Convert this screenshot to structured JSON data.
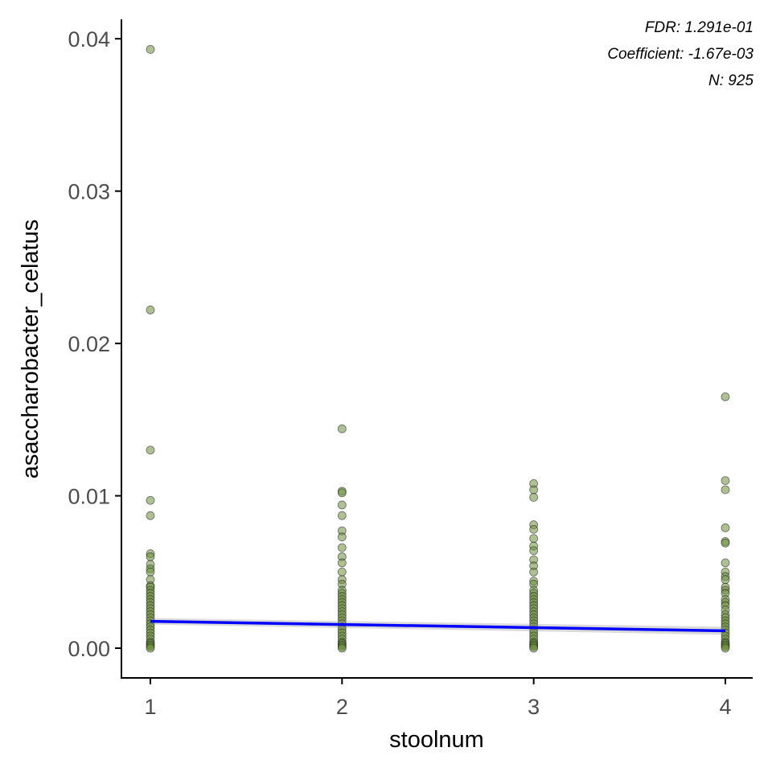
{
  "chart_data": {
    "type": "scatter",
    "xlabel": "stoolnum",
    "ylabel": "asaccharobacter_celatus",
    "x_ticks": [
      1,
      2,
      3,
      4
    ],
    "y_ticks": [
      0.0,
      0.01,
      0.02,
      0.03,
      0.04
    ],
    "y_tick_labels": [
      "0.00",
      "0.01",
      "0.02",
      "0.03",
      "0.04"
    ],
    "x_tick_labels": [
      "1",
      "2",
      "3",
      "4"
    ],
    "xlim": [
      0.85,
      4.15
    ],
    "ylim": [
      -0.002,
      0.041
    ],
    "grid": false,
    "annotations": [
      "FDR: 1.291e-01",
      "Coefficient: -1.67e-03",
      "N: 925"
    ],
    "point_color": "#6b8e3a",
    "fit_color": "#0000ff",
    "fit_line": {
      "x": [
        1,
        4
      ],
      "y": [
        0.00176,
        0.00114
      ]
    },
    "points": [
      {
        "x": 1,
        "y": [
          0.0393,
          0.0222,
          0.013,
          0.0097,
          0.0087,
          0.0062,
          0.006,
          0.0055,
          0.0052,
          0.005,
          0.0045,
          0.0041,
          0.004,
          0.0038,
          0.0036,
          0.0034,
          0.0032,
          0.003,
          0.0028,
          0.0026,
          0.0024,
          0.0022,
          0.002,
          0.0018,
          0.0016,
          0.0014,
          0.0012,
          0.001,
          0.0008,
          0.0006,
          0.0004,
          0.0003,
          0.0002,
          0.0001,
          0.0
        ]
      },
      {
        "x": 2,
        "y": [
          0.0144,
          0.0103,
          0.0102,
          0.0094,
          0.0087,
          0.0077,
          0.0073,
          0.0066,
          0.006,
          0.0056,
          0.005,
          0.0045,
          0.0042,
          0.0038,
          0.0036,
          0.0034,
          0.0032,
          0.003,
          0.0028,
          0.0026,
          0.0024,
          0.0022,
          0.002,
          0.0018,
          0.0016,
          0.0014,
          0.0012,
          0.001,
          0.0008,
          0.0006,
          0.0004,
          0.0003,
          0.0002,
          0.0001,
          0.0
        ]
      },
      {
        "x": 3,
        "y": [
          0.0108,
          0.0104,
          0.0099,
          0.0081,
          0.0078,
          0.0072,
          0.0067,
          0.0064,
          0.0058,
          0.0054,
          0.005,
          0.0044,
          0.0042,
          0.0038,
          0.0036,
          0.0034,
          0.0032,
          0.003,
          0.0028,
          0.0026,
          0.0024,
          0.0022,
          0.002,
          0.0018,
          0.0016,
          0.0014,
          0.0012,
          0.001,
          0.0008,
          0.0006,
          0.0004,
          0.0003,
          0.0002,
          0.0001,
          0.0
        ]
      },
      {
        "x": 4,
        "y": [
          0.0165,
          0.011,
          0.0104,
          0.0079,
          0.007,
          0.0069,
          0.0056,
          0.005,
          0.0047,
          0.0045,
          0.004,
          0.0038,
          0.0036,
          0.0032,
          0.003,
          0.0028,
          0.0025,
          0.0022,
          0.002,
          0.0018,
          0.0016,
          0.0014,
          0.0012,
          0.001,
          0.0008,
          0.0006,
          0.0004,
          0.0003,
          0.0002,
          0.0001,
          0.0
        ]
      }
    ]
  }
}
